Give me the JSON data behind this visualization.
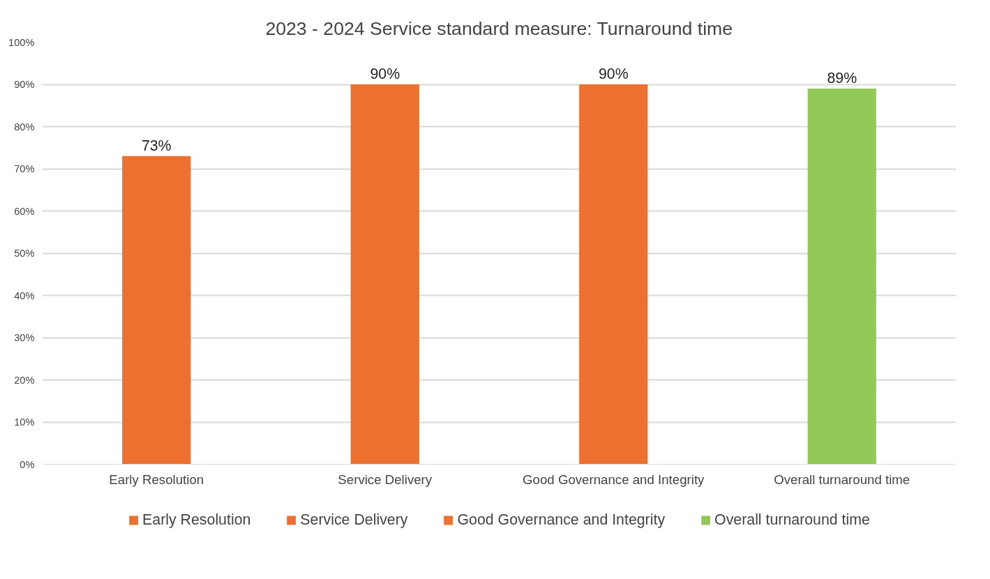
{
  "chart_data": {
    "type": "bar",
    "title": "2023 - 2024 Service standard measure: Turnaround time",
    "categories": [
      "Early Resolution",
      "Service Delivery",
      "Good Governance and Integrity",
      "Overall turnaround time"
    ],
    "series": [
      {
        "name": "Early Resolution",
        "color": "#ec7030",
        "values": [
          73,
          null,
          null,
          null
        ],
        "value_labels": [
          "73%",
          null,
          null,
          null
        ]
      },
      {
        "name": "Service Delivery",
        "color": "#ec7030",
        "values": [
          null,
          90,
          null,
          null
        ],
        "value_labels": [
          null,
          "90%",
          null,
          null
        ]
      },
      {
        "name": "Good Governance and Integrity",
        "color": "#ec7030",
        "values": [
          null,
          null,
          90,
          null
        ],
        "value_labels": [
          null,
          null,
          "90%",
          null
        ]
      },
      {
        "name": "Overall turnaround time",
        "color": "#92c855",
        "values": [
          null,
          null,
          null,
          89
        ],
        "value_labels": [
          null,
          null,
          null,
          "89%"
        ]
      }
    ],
    "ylim": [
      0,
      100
    ],
    "yticks": [
      {
        "value": 0,
        "label": "0%"
      },
      {
        "value": 10,
        "label": "10%"
      },
      {
        "value": 20,
        "label": "20%"
      },
      {
        "value": 30,
        "label": "30%"
      },
      {
        "value": 40,
        "label": "40%"
      },
      {
        "value": 50,
        "label": "50%"
      },
      {
        "value": 60,
        "label": "60%"
      },
      {
        "value": 70,
        "label": "70%"
      },
      {
        "value": 80,
        "label": "80%"
      },
      {
        "value": 90,
        "label": "90%"
      },
      {
        "value": 100,
        "label": "100%"
      }
    ],
    "grid": "y",
    "legend": "bottom"
  }
}
